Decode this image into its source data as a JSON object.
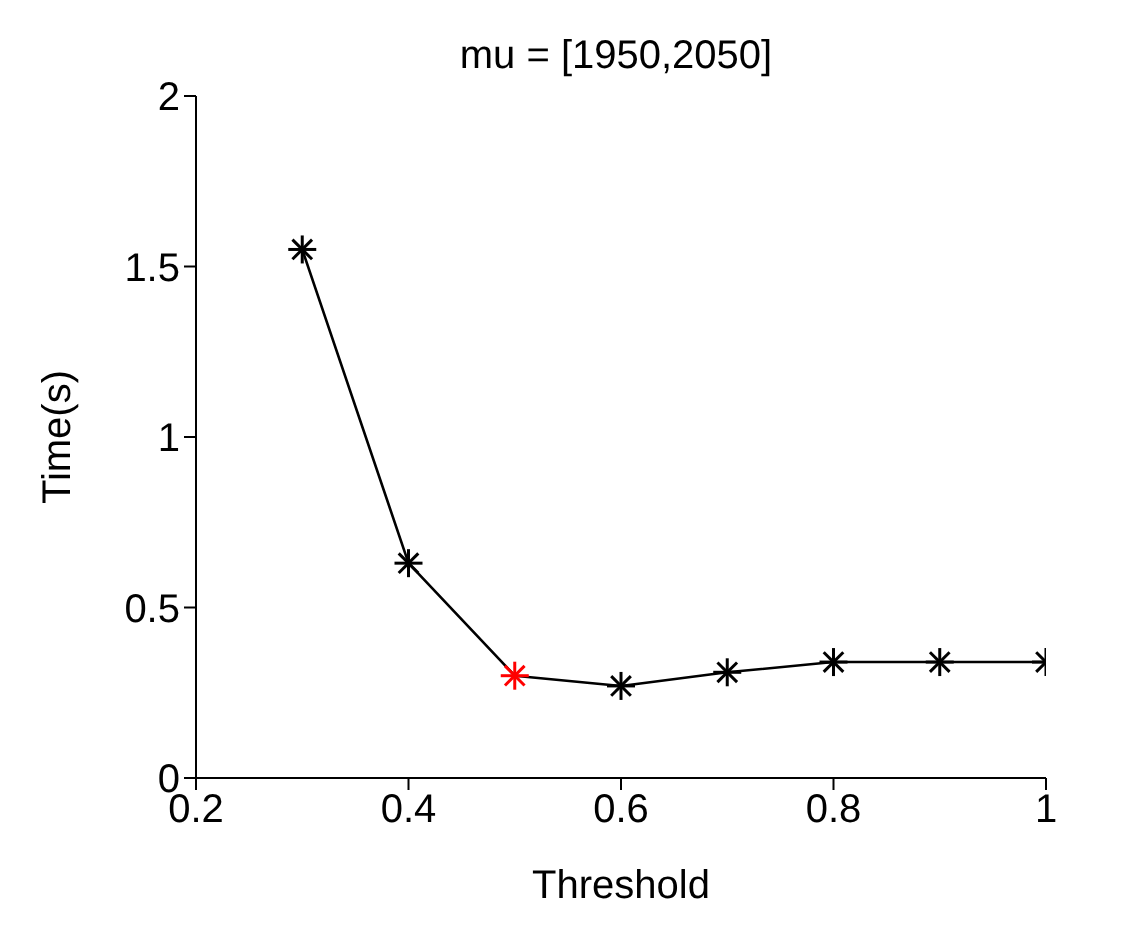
{
  "chart_data": {
    "type": "line",
    "title": "mu = [1950,2050]",
    "xlabel": "Threshold",
    "ylabel": "Time(s)",
    "x": [
      0.3,
      0.4,
      0.5,
      0.6,
      0.7,
      0.8,
      0.9,
      1.0
    ],
    "series": [
      {
        "color": "#000000",
        "colors": [
          "#000000",
          "#000000",
          "#ff0000",
          "#000000",
          "#000000",
          "#000000",
          "#000000",
          "#000000"
        ],
        "values": [
          1.55,
          0.63,
          0.3,
          0.27,
          0.31,
          0.34,
          0.34,
          0.34
        ]
      }
    ],
    "xlim": [
      0.2,
      1
    ],
    "xticks": [
      0.2,
      0.4,
      0.6,
      0.8,
      1
    ],
    "ylim": [
      0,
      2
    ],
    "yticks": [
      0,
      0.5,
      1,
      1.5,
      2
    ],
    "marker": "cross",
    "line_style": "solid",
    "grid": false,
    "legend": false
  }
}
